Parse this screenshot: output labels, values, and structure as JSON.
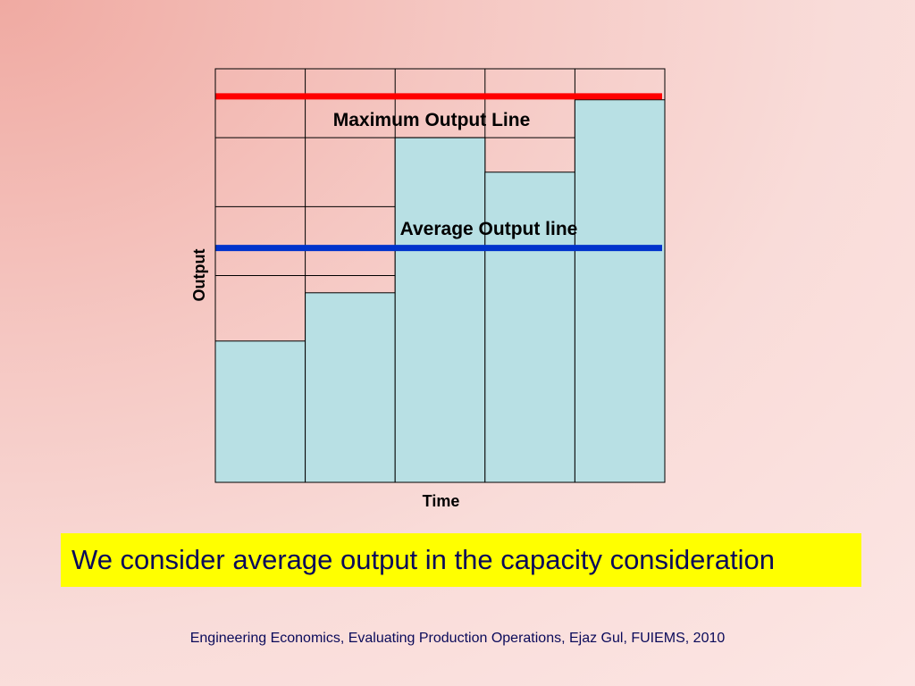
{
  "chart_data": {
    "type": "bar",
    "categories": [
      "",
      "",
      "",
      "",
      ""
    ],
    "values": [
      2.05,
      2.75,
      5.0,
      4.5,
      5.55
    ],
    "ylim": [
      0,
      6
    ],
    "grid": true,
    "xlabel": "Time",
    "ylabel": "Output",
    "reference_lines": [
      {
        "name": "Maximum Output Line",
        "value": 5.6,
        "color": "#ff0000"
      },
      {
        "name": "Average Output line",
        "value": 3.4,
        "color": "#0033cc"
      }
    ],
    "colors": {
      "bar": "#b8e0e4",
      "grid": "#000000"
    }
  },
  "callout": {
    "text": "We consider average output in the capacity consideration"
  },
  "footer": {
    "text": "Engineering Economics, Evaluating Production Operations, Ejaz Gul, FUIEMS, 2010"
  }
}
